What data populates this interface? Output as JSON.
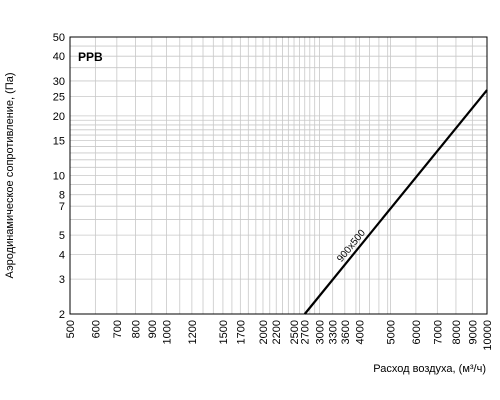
{
  "chart_data": {
    "type": "line",
    "title": "PPB",
    "xlabel": "Расход воздуха, (м³/ч)",
    "ylabel": "Аэродинамическое сопротивление, (Па)",
    "x_scale": "log",
    "y_scale": "log",
    "xlim": [
      500,
      10000
    ],
    "ylim": [
      2,
      50
    ],
    "grid": true,
    "x_grid_values": [
      500,
      600,
      700,
      800,
      900,
      1000,
      1100,
      1200,
      1300,
      1400,
      1500,
      1600,
      1700,
      1800,
      1900,
      2000,
      2100,
      2200,
      2300,
      2400,
      2500,
      2600,
      2700,
      2800,
      2900,
      3000,
      3300,
      3600,
      3900,
      4000,
      4300,
      4600,
      4900,
      5000,
      6000,
      7000,
      8000,
      9000,
      10000
    ],
    "x_tick_labels": [
      "500",
      "600",
      "700",
      "800",
      "900",
      "1000",
      "1200",
      "1500",
      "1700",
      "2000",
      "2200",
      "2500",
      "2700",
      "3000",
      "3300",
      "3600",
      "4000",
      "5000",
      "6000",
      "7000",
      "8000",
      "9000",
      "10000"
    ],
    "y_grid_values": [
      2,
      3,
      4,
      5,
      6,
      7,
      8,
      9,
      10,
      11,
      12,
      13,
      14,
      15,
      16,
      17,
      18,
      19,
      20,
      25,
      30,
      35,
      40,
      45,
      50
    ],
    "y_tick_labels": [
      "2",
      "3",
      "4",
      "5",
      "7",
      "8",
      "10",
      "15",
      "20",
      "25",
      "30",
      "40",
      "50"
    ],
    "series": [
      {
        "name": "900x500",
        "x": [
          2700,
          10000
        ],
        "y": [
          2,
          27
        ]
      }
    ]
  }
}
